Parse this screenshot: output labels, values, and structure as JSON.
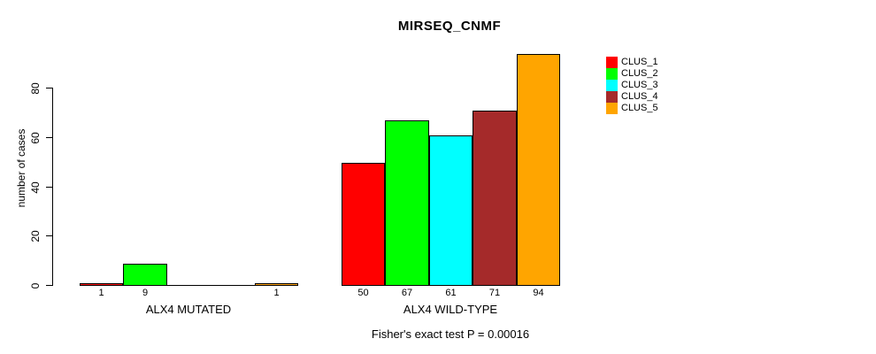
{
  "chart_data": {
    "type": "bar",
    "title": "MIRSEQ_CNMF",
    "ylabel": "number of cases",
    "xlabel": "",
    "caption": "Fisher's exact test P = 0.00016",
    "grid": false,
    "legend_position": "right",
    "background_color": "#ffffff",
    "axis_color": "#000000",
    "y_ticks": [
      0,
      20,
      40,
      60,
      80
    ],
    "ylim": [
      0,
      94
    ],
    "groups": [
      {
        "label": "ALX4 MUTATED",
        "values": [
          1,
          9,
          0,
          0,
          1
        ]
      },
      {
        "label": "ALX4 WILD-TYPE",
        "values": [
          50,
          67,
          61,
          71,
          94
        ]
      }
    ],
    "series": [
      {
        "name": "CLUS_1",
        "color": "#ff0000"
      },
      {
        "name": "CLUS_2",
        "color": "#00ff00"
      },
      {
        "name": "CLUS_3",
        "color": "#00ffff"
      },
      {
        "name": "CLUS_4",
        "color": "#a52a2a"
      },
      {
        "name": "CLUS_5",
        "color": "#ffa500"
      }
    ],
    "bar_value_labels_shown_for_zero": false
  }
}
